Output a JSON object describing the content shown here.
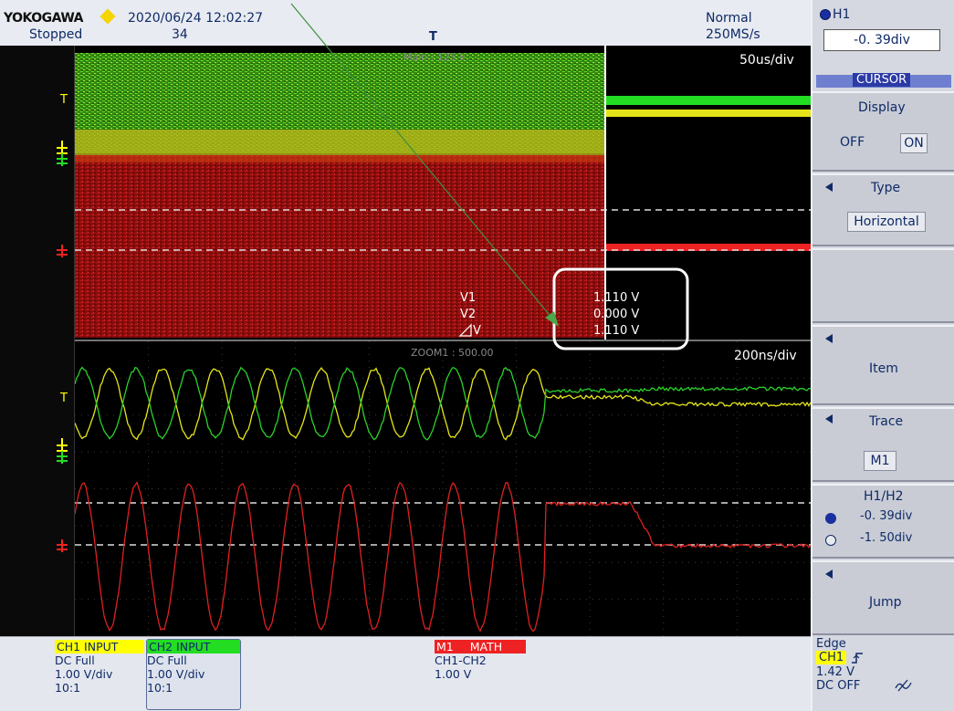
{
  "status": {
    "brand": "YOKOGAWA",
    "datetime": "2020/06/24 12:02:27",
    "state": "Stopped",
    "count": "34",
    "mode": "Normal",
    "sample_rate": "250MS/s",
    "trigger_mark": "T"
  },
  "main_view": {
    "label": "Main : 125 k",
    "timebase": "50us/div"
  },
  "zoom_view": {
    "label": "ZOOM1 : 500.00",
    "timebase": "200ns/div"
  },
  "cursor_readout": {
    "v1_label": "V1",
    "v1_value": "1.110 V",
    "v2_label": "V2",
    "v2_value": "0.000 V",
    "dv_label": "V",
    "dv_value": "1.110 V"
  },
  "panel": {
    "h1_label": "H1",
    "h1_value": "-0. 39div",
    "cursor_title": "CURSOR",
    "display_label": "Display",
    "display_off": "OFF",
    "display_on": "ON",
    "type_label": "Type",
    "type_value": "Horizontal",
    "item_label": "Item",
    "trace_label": "Trace",
    "trace_value": "M1",
    "h1h2_label": "H1/H2",
    "h1_pos": "-0. 39div",
    "h2_pos": "-1. 50div",
    "jump_label": "Jump"
  },
  "channels": {
    "ch1": {
      "title": "CH1 INPUT",
      "coupling": "DC Full",
      "scale": "1.00 V/div",
      "probe": "10:1",
      "color": "#ffff00"
    },
    "ch2": {
      "title": "CH2 INPUT",
      "coupling": "DC Full",
      "scale": "1.00 V/div",
      "probe": "10:1",
      "color": "#22dd22"
    },
    "math": {
      "tag": "M1",
      "title": "MATH",
      "expr": "CH1-CH2",
      "scale": "1.00 V",
      "color": "#ee2222"
    }
  },
  "trigger": {
    "type": "Edge",
    "source": "CH1",
    "level": "1.42 V",
    "coupling": "DC OFF"
  },
  "colors": {
    "ch1": "#ffff00",
    "ch2": "#22dd22",
    "math": "#ee2222",
    "accent": "#0f2a66"
  }
}
